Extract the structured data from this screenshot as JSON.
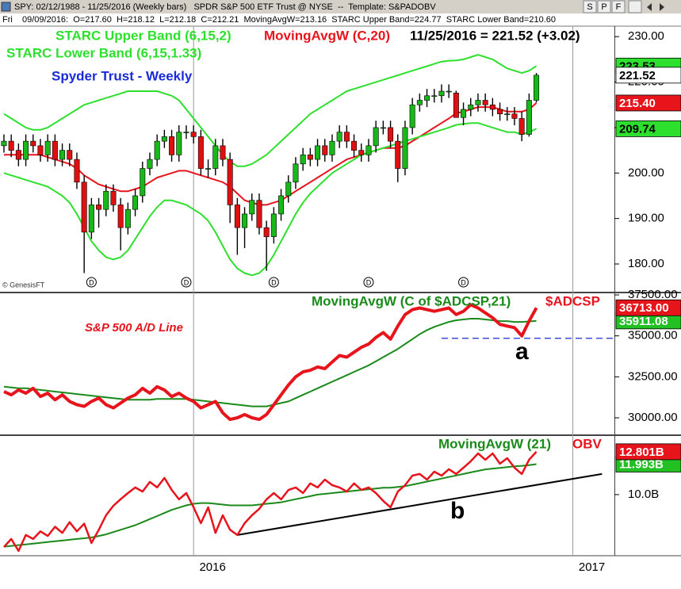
{
  "header": {
    "symbol_line": "SPY: 02/12/1988 - 11/25/2016 (Weekly bars)   SPDR S&P 500 ETF Trust @ NYSE  --  Template: S&PADOBV",
    "buttons": [
      "S",
      "P",
      "F"
    ],
    "day": "Fri",
    "data_line": "09/09/2016:  O=217.60  H=218.12  L=212.18  C=212.21  MovingAvgW=213.16  STARC Upper Band=224.77  STARC Lower Band=210.60"
  },
  "chart_data": [
    {
      "type": "candlestick",
      "title": "Spyder Trust - Weekly",
      "last_label": "11/25/2016 = 221.52 (+3.02)",
      "credit": "© GenesisFT",
      "up_color": "#18b818",
      "down_color": "#e01010",
      "close_tag_color": "#ffffff",
      "close_label": "221.52",
      "open": [
        206,
        207,
        205,
        203,
        207,
        206,
        204,
        207,
        203,
        205,
        203,
        198,
        187,
        193,
        192,
        196,
        193,
        188,
        192,
        195,
        201,
        203,
        207,
        208,
        204,
        209,
        209,
        208,
        201,
        201,
        206,
        203,
        193,
        188,
        191,
        194,
        188,
        186,
        191,
        195,
        198,
        202,
        204,
        203,
        206,
        204,
        207,
        209,
        207,
        205,
        204,
        206,
        210,
        210,
        207,
        201,
        210,
        215,
        216,
        217,
        217,
        218,
        217.6,
        212.21,
        214,
        215,
        216,
        215,
        214,
        213,
        213,
        212,
        208.5,
        216
      ],
      "high": [
        208.5,
        208.5,
        206.5,
        208.5,
        208.5,
        207.5,
        208.5,
        208.5,
        206.5,
        206.5,
        204.5,
        199.5,
        194.5,
        194.5,
        197.5,
        197.5,
        194.5,
        193.5,
        196.5,
        202.5,
        204.5,
        208.5,
        209.5,
        209.5,
        210.5,
        210.5,
        210.5,
        209.5,
        203,
        207.5,
        207.5,
        204.5,
        194.5,
        192.5,
        195.5,
        195.5,
        189.5,
        192.5,
        196.5,
        199.5,
        203.5,
        205.5,
        205.5,
        207.5,
        207.5,
        208.5,
        210.5,
        210.5,
        208.5,
        206.5,
        207.5,
        211.5,
        211.5,
        211.5,
        208.5,
        211.5,
        216.5,
        217.5,
        218.5,
        218.5,
        219.5,
        219.5,
        218.12,
        215.5,
        216.5,
        217.5,
        217.5,
        216.5,
        215.5,
        214.5,
        214.5,
        213.5,
        217.5,
        222
      ],
      "low": [
        204.5,
        203.5,
        201.5,
        201.5,
        204.5,
        202.5,
        202.5,
        201.5,
        201.5,
        201.5,
        196.5,
        178,
        185.5,
        188,
        190.5,
        191.5,
        183,
        186.5,
        190.5,
        193.5,
        199.5,
        201.5,
        205.5,
        202.5,
        202.5,
        207.5,
        206.5,
        199.5,
        199,
        199.5,
        201.5,
        189,
        182,
        183.5,
        189.5,
        186.5,
        178.5,
        184.5,
        189.5,
        193.5,
        196.5,
        200.5,
        201.5,
        201.5,
        202.5,
        202.5,
        205.5,
        205.5,
        203.5,
        202.5,
        202.5,
        204.5,
        208.5,
        205.5,
        198,
        199.5,
        208.5,
        213.5,
        214.5,
        215.5,
        215.5,
        216.5,
        212.18,
        210.5,
        212.5,
        213.5,
        213.5,
        212.5,
        211.5,
        211.5,
        210.5,
        207,
        208,
        215.5
      ],
      "close": [
        207,
        205,
        203,
        207,
        206,
        204,
        207,
        203,
        205,
        203,
        198,
        187,
        193,
        192,
        196,
        193,
        188,
        192,
        195,
        201,
        203,
        207,
        208,
        204,
        209,
        209,
        208,
        201,
        201,
        206,
        203,
        193,
        188,
        191,
        194,
        188,
        186,
        191,
        195,
        198,
        202,
        204,
        203,
        206,
        204,
        207,
        209,
        207,
        205,
        204,
        206,
        210,
        210,
        207,
        201,
        210,
        215,
        216,
        217,
        217,
        218,
        218,
        212.21,
        214,
        215,
        216,
        215,
        214,
        213,
        213,
        212,
        208.5,
        216,
        221.52
      ],
      "series": [
        {
          "name": "STARC Upper Band (6,15,2)",
          "color": "#2ee02e",
          "tag_color": "#2ee02e",
          "last_label": "223.53",
          "values": [
            213,
            212,
            211,
            210,
            209.5,
            209.5,
            210,
            211,
            212,
            213,
            214,
            215,
            215.5,
            216,
            216.5,
            217,
            217.5,
            218,
            218,
            218,
            218,
            218,
            217.5,
            217,
            216,
            214,
            212,
            210,
            208,
            206,
            204,
            202.5,
            201.5,
            201.5,
            202,
            203,
            204,
            205.5,
            207,
            208.5,
            210,
            211.5,
            213,
            214,
            215,
            216,
            217,
            218,
            218.5,
            219,
            219.5,
            220,
            220.5,
            221,
            221.5,
            222,
            222.5,
            223,
            223.5,
            224,
            224.5,
            224.7,
            224.77,
            225,
            225.5,
            226,
            225.5,
            225,
            224,
            223,
            222.5,
            222,
            222.5,
            223.53
          ]
        },
        {
          "name": "MovingAvgW (C,20)",
          "color": "#e8141c",
          "tag_color": "#e8141c",
          "last_label": "215.40",
          "values": [
            204,
            204,
            204,
            204,
            204,
            204,
            203.5,
            203,
            202.5,
            202,
            201,
            199.5,
            198.5,
            197.5,
            197,
            196.5,
            196,
            196,
            196.5,
            197,
            198,
            199,
            199.5,
            200,
            200.5,
            200.5,
            200,
            199.5,
            199,
            198.5,
            198,
            197,
            195.5,
            194,
            193.5,
            193,
            193,
            193.5,
            194,
            195,
            196,
            197,
            198,
            199,
            200,
            201,
            202,
            203,
            203.5,
            204,
            204.5,
            205,
            205.5,
            205.5,
            205.5,
            206,
            207,
            208,
            209,
            210,
            211,
            212,
            213.16,
            213.5,
            214,
            214.5,
            214.5,
            214.5,
            214,
            213.5,
            213.5,
            213.5,
            214,
            215.4
          ]
        },
        {
          "name": "STARC Lower Band (6,15,1.33)",
          "color": "#2ee02e",
          "tag_color": "#2ee02e",
          "last_label": "209.74",
          "values": [
            200,
            199.5,
            199,
            198.5,
            198,
            197.5,
            197,
            196,
            195,
            193.5,
            191,
            188,
            185,
            183,
            181.5,
            181,
            181.5,
            183,
            185.5,
            188,
            190.5,
            192.5,
            194,
            194,
            193.5,
            193,
            192,
            191,
            189.5,
            187,
            184,
            181,
            179,
            178,
            177.5,
            178,
            179.5,
            182,
            185,
            188,
            191,
            193.5,
            195.5,
            197,
            198.5,
            200,
            201,
            202,
            203,
            204,
            204.5,
            205,
            205.5,
            206,
            206.5,
            207,
            207.5,
            208,
            208.5,
            209,
            209.5,
            210,
            210.6,
            210.8,
            211,
            211,
            210.5,
            210,
            209.5,
            209,
            209,
            208.5,
            209,
            209.74
          ]
        }
      ],
      "dividend_label": "D",
      "dividend_weeks": [
        12,
        25,
        37,
        50,
        63
      ],
      "ylim": [
        173.9,
        232.3
      ],
      "yticks": [
        {
          "value": 180,
          "label": "180.00"
        },
        {
          "value": 190,
          "label": "190.00"
        },
        {
          "value": 200,
          "label": "200.00"
        },
        {
          "value": 210,
          "label": "210.00"
        },
        {
          "value": 220,
          "label": "220.00"
        },
        {
          "value": 230,
          "label": "230.00"
        }
      ]
    },
    {
      "type": "line",
      "annotation": "S&P 500 A/D Line",
      "marker_label": "a",
      "series": [
        {
          "name": "MovingAvgW (C of $ADCSP,21)",
          "color": "#1a8a1a",
          "tag_color": "#22c022",
          "last_label": "35911.08",
          "values": [
            31900,
            31850,
            31800,
            31800,
            31750,
            31700,
            31650,
            31600,
            31550,
            31500,
            31450,
            31400,
            31350,
            31300,
            31250,
            31200,
            31150,
            31100,
            31100,
            31100,
            31100,
            31150,
            31150,
            31150,
            31150,
            31150,
            31100,
            31050,
            31000,
            30950,
            30900,
            30850,
            30800,
            30750,
            30700,
            30700,
            30700,
            30800,
            30900,
            31000,
            31200,
            31400,
            31600,
            31800,
            32000,
            32200,
            32400,
            32600,
            32800,
            33000,
            33200,
            33450,
            33700,
            33950,
            34200,
            34500,
            34800,
            35100,
            35350,
            35550,
            35700,
            35850,
            35950,
            36000,
            36050,
            36050,
            36000,
            35950,
            35900,
            35900,
            35850,
            35850,
            35880,
            35911.08
          ]
        },
        {
          "name": "$ADCSP",
          "color": "#e8141c",
          "tag_color": "#e8141c",
          "last_label": "36713.00",
          "values": [
            31600,
            31400,
            31700,
            31500,
            31800,
            31300,
            31500,
            31100,
            31400,
            31000,
            30800,
            30700,
            31000,
            31200,
            30800,
            30600,
            30900,
            31200,
            31400,
            31800,
            31500,
            31900,
            31700,
            31300,
            31500,
            31200,
            31000,
            30600,
            30800,
            31000,
            30300,
            29900,
            30000,
            30200,
            30000,
            29900,
            30200,
            30800,
            31400,
            32000,
            32500,
            32800,
            32900,
            33100,
            33000,
            33400,
            33800,
            33700,
            34000,
            34300,
            34500,
            34900,
            35200,
            34800,
            35600,
            36300,
            36600,
            36700,
            36600,
            36500,
            36600,
            36700,
            36300,
            36500,
            36900,
            36700,
            36400,
            36100,
            35700,
            35600,
            35500,
            35000,
            35900,
            36713
          ]
        }
      ],
      "reference_line": {
        "value": 34850,
        "from": 60,
        "color": "#1a2ad8"
      },
      "ylim": [
        28985,
        37597
      ],
      "yticks": [
        {
          "value": 30000,
          "label": "30000.00"
        },
        {
          "value": 32500,
          "label": "32500.00"
        },
        {
          "value": 35000,
          "label": "35000.00"
        },
        {
          "value": 37500,
          "label": "37500.00"
        }
      ]
    },
    {
      "type": "line",
      "marker_label": "b",
      "series": [
        {
          "name": "MovingAvgW (21)",
          "color": "#1a8a1a",
          "tag_color": "#22c022",
          "last_label": "11.993B",
          "values": [
            6.6,
            6.65,
            6.7,
            6.75,
            6.8,
            6.85,
            6.9,
            6.95,
            7.0,
            7.05,
            7.1,
            7.15,
            7.2,
            7.3,
            7.4,
            7.55,
            7.7,
            7.85,
            8.0,
            8.2,
            8.4,
            8.6,
            8.8,
            9.0,
            9.15,
            9.3,
            9.4,
            9.45,
            9.45,
            9.4,
            9.35,
            9.3,
            9.3,
            9.3,
            9.3,
            9.35,
            9.4,
            9.45,
            9.5,
            9.6,
            9.7,
            9.8,
            9.9,
            10.0,
            10.05,
            10.1,
            10.15,
            10.2,
            10.25,
            10.3,
            10.35,
            10.4,
            10.45,
            10.45,
            10.5,
            10.55,
            10.65,
            10.75,
            10.85,
            10.95,
            11.05,
            11.15,
            11.25,
            11.35,
            11.45,
            11.55,
            11.65,
            11.7,
            11.75,
            11.8,
            11.85,
            11.88,
            11.93,
            11.993
          ]
        },
        {
          "name": "OBV",
          "color": "#e8141c",
          "tag_color": "#e8141c",
          "last_label": "12.801B",
          "values": [
            6.58,
            7.1,
            6.32,
            7.36,
            7.1,
            7.6,
            7.3,
            7.9,
            7.5,
            8.2,
            7.6,
            8.1,
            6.84,
            7.7,
            8.65,
            9.27,
            9.7,
            10.1,
            10.47,
            10.2,
            10.83,
            10.47,
            11.09,
            10.31,
            9.69,
            10.1,
            9.17,
            8.13,
            9.17,
            7.5,
            8.65,
            7.7,
            7.36,
            8.13,
            8.65,
            9.07,
            9.69,
            10.1,
            9.69,
            10.3,
            10.47,
            10.1,
            10.73,
            10.47,
            10.98,
            10.62,
            10.47,
            10.2,
            10.73,
            10.31,
            10.47,
            10.1,
            9.59,
            9.17,
            10.2,
            10.62,
            11.24,
            11.35,
            10.98,
            11.5,
            11.24,
            11.66,
            11.35,
            11.76,
            12.18,
            12.69,
            12.28,
            12.69,
            12.02,
            12.38,
            11.76,
            11.35,
            12.28,
            12.801
          ]
        }
      ],
      "trendline": {
        "x": [
          32,
          82
        ],
        "y": [
          7.36,
          11.35
        ],
        "color": "#000000"
      },
      "ylim": [
        6.06,
        13.83
      ],
      "yticks": [
        {
          "value": 10,
          "label": "10.0B"
        }
      ],
      "xlim": [
        -0.54,
        83.7
      ],
      "xticks": [
        {
          "value": 26,
          "label": "2016"
        },
        {
          "value": 78,
          "label": "2017"
        }
      ]
    }
  ]
}
